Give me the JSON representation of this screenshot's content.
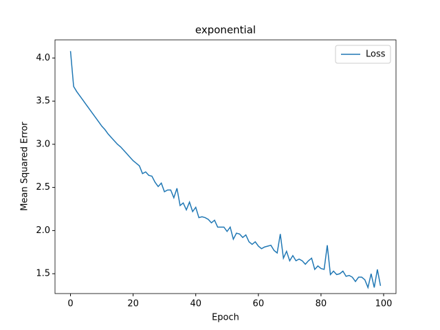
{
  "chart_data": {
    "type": "line",
    "title": "exponential",
    "xlabel": "Epoch",
    "ylabel": "Mean Squared Error",
    "x": [
      0,
      1,
      2,
      3,
      4,
      5,
      6,
      7,
      8,
      9,
      10,
      11,
      12,
      13,
      14,
      15,
      16,
      17,
      18,
      19,
      20,
      21,
      22,
      23,
      24,
      25,
      26,
      27,
      28,
      29,
      30,
      31,
      32,
      33,
      34,
      35,
      36,
      37,
      38,
      39,
      40,
      41,
      42,
      43,
      44,
      45,
      46,
      47,
      48,
      49,
      50,
      51,
      52,
      53,
      54,
      55,
      56,
      57,
      58,
      59,
      60,
      61,
      62,
      63,
      64,
      65,
      66,
      67,
      68,
      69,
      70,
      71,
      72,
      73,
      74,
      75,
      76,
      77,
      78,
      79,
      80,
      81,
      82,
      83,
      84,
      85,
      86,
      87,
      88,
      89,
      90,
      91,
      92,
      93,
      94,
      95,
      96,
      97,
      98,
      99
    ],
    "series": [
      {
        "name": "Loss",
        "color": "#1f77b4",
        "values": [
          4.08,
          3.67,
          3.61,
          3.56,
          3.51,
          3.46,
          3.41,
          3.36,
          3.31,
          3.26,
          3.21,
          3.17,
          3.12,
          3.08,
          3.04,
          3.0,
          2.97,
          2.93,
          2.89,
          2.85,
          2.81,
          2.78,
          2.75,
          2.66,
          2.68,
          2.64,
          2.63,
          2.56,
          2.51,
          2.55,
          2.45,
          2.47,
          2.47,
          2.38,
          2.49,
          2.29,
          2.32,
          2.24,
          2.33,
          2.22,
          2.27,
          2.15,
          2.16,
          2.15,
          2.13,
          2.09,
          2.12,
          2.04,
          2.04,
          2.04,
          1.99,
          2.04,
          1.9,
          1.97,
          1.96,
          1.92,
          1.95,
          1.87,
          1.84,
          1.87,
          1.82,
          1.79,
          1.81,
          1.82,
          1.83,
          1.77,
          1.74,
          1.96,
          1.68,
          1.76,
          1.65,
          1.71,
          1.65,
          1.67,
          1.65,
          1.61,
          1.65,
          1.68,
          1.55,
          1.59,
          1.56,
          1.55,
          1.83,
          1.49,
          1.53,
          1.49,
          1.5,
          1.53,
          1.47,
          1.48,
          1.46,
          1.41,
          1.46,
          1.46,
          1.43,
          1.34,
          1.5,
          1.34,
          1.55,
          1.36
        ]
      }
    ],
    "xlim": [
      -4.95,
      103.95
    ],
    "xticks": [
      0,
      20,
      40,
      60,
      80,
      100
    ],
    "ylim": [
      1.27,
      4.21
    ],
    "yticks": [
      1.5,
      {
        "value": 2.0,
        "label": "2.0"
      },
      2.5,
      {
        "value": 3.0,
        "label": "3.0"
      },
      3.5,
      {
        "value": 4.0,
        "label": "4.0"
      }
    ],
    "legend": "upper right"
  }
}
